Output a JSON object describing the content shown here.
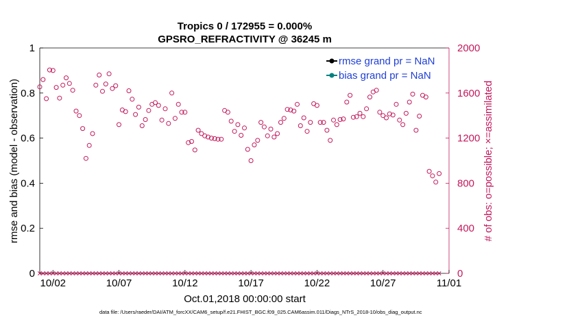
{
  "colors": {
    "right_axis": "#c2185b",
    "legend_text": "#1f3fd6",
    "rmse_line": "#000000",
    "bias_line": "#008080"
  },
  "chart_data": {
    "type": "scatter",
    "title": "Tropics 0 / 172955 = 0.000%",
    "subtitle": "GPSRO_REFRACTIVITY @ 36245 m",
    "xlabel": "Oct.01,2018 00:00:00 start",
    "ylabel_left": "rmse and bias (model - observation)",
    "ylabel_right": "# of obs: o=possible; ×=assimilated",
    "xlim": [
      1.0,
      32.0
    ],
    "ylim_left": [
      0,
      1
    ],
    "ylim_right": [
      0,
      2000
    ],
    "x_ticks": [
      2,
      7,
      12,
      17,
      22,
      27,
      32
    ],
    "x_tick_labels": [
      "10/02",
      "10/07",
      "10/12",
      "10/17",
      "10/22",
      "10/27",
      "11/01"
    ],
    "y_left_ticks": [
      0,
      0.2,
      0.4,
      0.6,
      0.8,
      1
    ],
    "y_left_tick_labels": [
      "0",
      "0.2",
      "0.4",
      "0.6",
      "0.8",
      "1"
    ],
    "y_right_ticks": [
      0,
      400,
      800,
      1200,
      1600,
      2000
    ],
    "y_right_tick_labels": [
      "0",
      "400",
      "800",
      "1200",
      "1600",
      "2000"
    ],
    "legend": [
      {
        "label": "rmse grand pr = NaN",
        "color": "#000000"
      },
      {
        "label": "bias grand pr = NaN",
        "color": "#008080"
      }
    ],
    "legend_position": "top-right",
    "series": [
      {
        "name": "possible (o)",
        "axis": "right",
        "marker": "circle",
        "step_days": 0.25,
        "start_day": 1.0,
        "values": [
          1655,
          1720,
          1550,
          1805,
          1800,
          1650,
          1555,
          1670,
          1735,
          1685,
          1625,
          1440,
          1400,
          1285,
          1020,
          1135,
          1240,
          1670,
          1760,
          1615,
          1680,
          1770,
          1640,
          1665,
          1320,
          1450,
          1435,
          1620,
          1545,
          1410,
          1475,
          1310,
          1365,
          1445,
          1500,
          1515,
          1490,
          1360,
          1460,
          1330,
          1600,
          1375,
          1500,
          1430,
          1430,
          1160,
          1170,
          1095,
          1270,
          1240,
          1220,
          1210,
          1200,
          1195,
          1190,
          1190,
          1445,
          1430,
          1350,
          1260,
          1320,
          1225,
          1290,
          1100,
          1000,
          1140,
          1180,
          1340,
          1300,
          1220,
          1280,
          1210,
          1240,
          1340,
          1375,
          1455,
          1450,
          1440,
          1500,
          1310,
          1380,
          1260,
          1340,
          1505,
          1490,
          1340,
          1340,
          1270,
          1180,
          1360,
          1320,
          1365,
          1370,
          1520,
          1580,
          1385,
          1390,
          1420,
          1390,
          1460,
          1565,
          1610,
          1625,
          1430,
          1400,
          1380,
          1415,
          1405,
          1500,
          1360,
          1320,
          1420,
          1520,
          1590,
          1270,
          1395,
          1580,
          1565,
          905,
          865,
          810,
          885
        ]
      },
      {
        "name": "assimilated (×)",
        "axis": "right",
        "marker": "x",
        "step_days": 0.25,
        "start_day": 1.0,
        "value_all": 0
      }
    ]
  },
  "footer": {
    "data_file": "data file: /Users/raeder/DAI/ATM_forcXX/CAM6_setup/f.e21.FHIST_BGC.f09_025.CAM6assim.011/Diags_NTrS_2018-10/obs_diag_output.nc"
  }
}
